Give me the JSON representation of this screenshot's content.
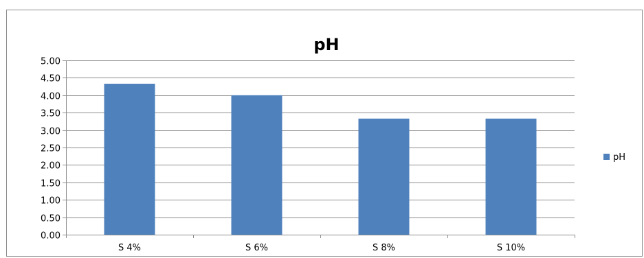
{
  "chart_data": {
    "type": "bar",
    "title": "pH",
    "categories": [
      "S 4%",
      "S 6%",
      "S 8%",
      "S 10%"
    ],
    "series": [
      {
        "name": "pH",
        "values": [
          4.33,
          4.0,
          3.33,
          3.33
        ]
      }
    ],
    "ylim": [
      0,
      5
    ],
    "ytick_step": 0.5,
    "ytick_labels": [
      "0.00",
      "0.50",
      "1.00",
      "1.50",
      "2.00",
      "2.50",
      "3.00",
      "3.50",
      "4.00",
      "4.50",
      "5.00"
    ],
    "xlabel": "",
    "ylabel": "",
    "grid": true,
    "legend_position": "right",
    "colors": {
      "bar": "#4f81bd",
      "grid": "#8c8c8c",
      "axis": "#8c8c8c"
    }
  }
}
